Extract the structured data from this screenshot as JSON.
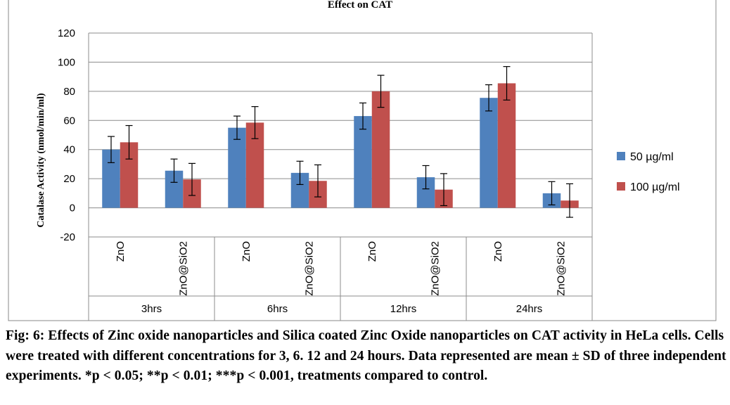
{
  "chart_data": {
    "type": "bar",
    "title": "Effect on CAT",
    "ylabel": "Catalase Activity (nmol/min/ml)",
    "xlabel": "",
    "ylim": [
      -20,
      120
    ],
    "yticks": [
      -20,
      0,
      20,
      40,
      60,
      80,
      100,
      120
    ],
    "grid": "horizontal",
    "legend_position": "right",
    "groups": [
      "3hrs",
      "6hrs",
      "12hrs",
      "24hrs"
    ],
    "categories": [
      "ZnO",
      "ZnO@SiO2",
      "ZnO",
      "ZnO@SiO2",
      "ZnO",
      "ZnO@SiO2",
      "ZnO",
      "ZnO@SiO2"
    ],
    "series": [
      {
        "name": "50 µg/ml",
        "color": "#4f81bd",
        "values": [
          40,
          25.5,
          55,
          24,
          63,
          21,
          75.5,
          10
        ],
        "errors": [
          9,
          8,
          8,
          8,
          9,
          8,
          9,
          8
        ]
      },
      {
        "name": "100 µg/ml",
        "color": "#c0504d",
        "values": [
          45,
          19.5,
          58.5,
          18.5,
          80,
          12.5,
          85.5,
          5
        ],
        "errors": [
          11.5,
          11,
          11,
          11,
          11,
          11,
          11.5,
          11.5
        ]
      }
    ]
  },
  "caption": "Fig: 6: Effects of Zinc oxide nanoparticles and Silica coated Zinc Oxide nanoparticles on CAT activity in HeLa cells. Cells were treated with different concentrations for 3, 6. 12 and 24 hours. Data represented are mean ± SD of three independent experiments. *p < 0.05; **p < 0.01; ***p < 0.001, treatments compared to control."
}
